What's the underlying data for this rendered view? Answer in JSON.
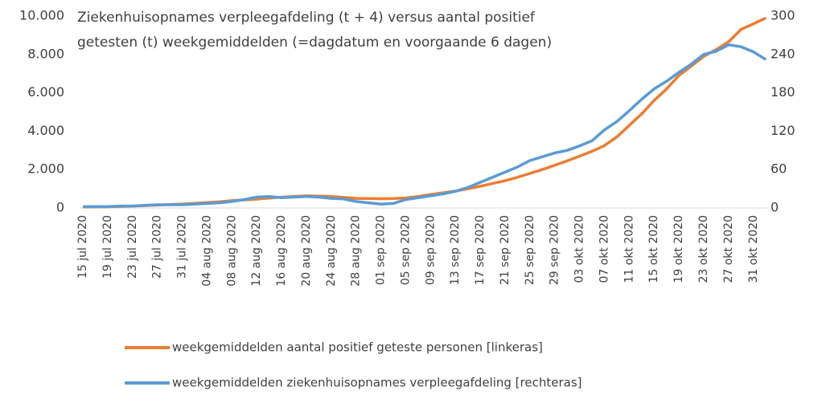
{
  "chart_data": {
    "type": "line",
    "title_lines": [
      "Ziekenhuisopnames verpleegafdeling (t + 4) versus aantal positief",
      "getesten (t) weekgemiddelden (=dagdatum en voorgaande 6 dagen)"
    ],
    "categories": [
      "15 jul 2020",
      null,
      "19 jul 2020",
      null,
      "23 jul 2020",
      null,
      "27 jul 2020",
      null,
      "31 jul 2020",
      null,
      "04 aug 2020",
      null,
      "08 aug 2020",
      null,
      "12 aug 2020",
      null,
      "16 aug 2020",
      null,
      "20 aug 2020",
      null,
      "24 aug 2020",
      null,
      "28 aug 2020",
      null,
      "01 sep 2020",
      null,
      "05 sep 2020",
      null,
      "09 sep 2020",
      null,
      "13 sep 2020",
      null,
      "17 sep 2020",
      null,
      "21 sep 2020",
      null,
      "25 sep 2020",
      null,
      "29 sep 2020",
      null,
      "03 okt 2020",
      null,
      "07 okt 2020",
      null,
      "11 okt 2020",
      null,
      "15 okt 2020",
      null,
      "19 okt 2020",
      null,
      "23 okt 2020",
      null,
      "27 okt 2020",
      null,
      "31 okt 2020",
      null
    ],
    "series": [
      {
        "name": "weekgemiddelden aantal positief geteste personen [linkeras]",
        "color": "#ed7d31",
        "values": [
          50,
          50,
          60,
          80,
          100,
          120,
          150,
          180,
          200,
          240,
          280,
          320,
          380,
          420,
          460,
          520,
          560,
          600,
          630,
          620,
          600,
          550,
          500,
          490,
          480,
          490,
          520,
          600,
          700,
          790,
          880,
          1000,
          1130,
          1270,
          1420,
          1600,
          1800,
          2000,
          2220,
          2450,
          2700,
          2950,
          3250,
          3700,
          4300,
          4900,
          5600,
          6200,
          6900,
          7400,
          7900,
          8250,
          8660,
          9300,
          9600,
          9900
        ]
      },
      {
        "name": "weekgemiddelden ziekenhuisopnames verpleegafdeling [rechteras]",
        "color": "#5b9bd5",
        "axis": "y2",
        "values": [
          2,
          2,
          2,
          3,
          3,
          4,
          5,
          5,
          5,
          6,
          7,
          8,
          10,
          13,
          17,
          18,
          16,
          17,
          18,
          17,
          15,
          14,
          10,
          8,
          6,
          7,
          13,
          16,
          19,
          22,
          26,
          32,
          40,
          48,
          56,
          64,
          74,
          80,
          86,
          90,
          97,
          105,
          122,
          135,
          152,
          170,
          186,
          198,
          212,
          225,
          240,
          245,
          255,
          252,
          244,
          232
        ]
      }
    ],
    "ylim": [
      0,
      10000
    ],
    "yticks": [
      0,
      {
        "value": 2000,
        "label": "2.000"
      },
      {
        "value": 4000,
        "label": "4.000"
      },
      {
        "value": 6000,
        "label": "6.000"
      },
      {
        "value": 8000,
        "label": "8.000"
      },
      {
        "value": 10000,
        "label": "10.000"
      }
    ],
    "y2lim": [
      0,
      300
    ],
    "y2ticks": [
      0,
      60,
      120,
      180,
      240,
      300
    ]
  }
}
